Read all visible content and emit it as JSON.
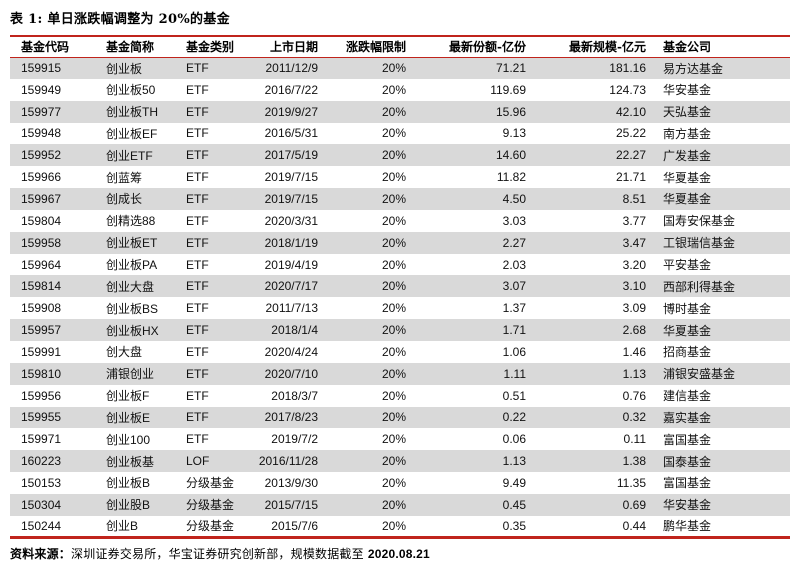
{
  "title": "表 1: 单日涨跌幅调整为 20%的基金",
  "colors": {
    "rule_red": "#c0241c",
    "stripe_gray": "#d9d9d9",
    "text_black": "#1a1a1a"
  },
  "table": {
    "columns": [
      {
        "key": "code",
        "label": "基金代码",
        "align": "left"
      },
      {
        "key": "name",
        "label": "基金简称",
        "align": "left"
      },
      {
        "key": "type",
        "label": "基金类别",
        "align": "left"
      },
      {
        "key": "date",
        "label": "上市日期",
        "align": "right"
      },
      {
        "key": "limit",
        "label": "涨跌幅限制",
        "align": "right"
      },
      {
        "key": "shares",
        "label": "最新份额-亿份",
        "align": "right"
      },
      {
        "key": "scale",
        "label": "最新规模-亿元",
        "align": "right"
      },
      {
        "key": "company",
        "label": "基金公司",
        "align": "left"
      }
    ],
    "rows": [
      [
        "159915",
        "创业板",
        "ETF",
        "2011/12/9",
        "20%",
        "71.21",
        "181.16",
        "易方达基金"
      ],
      [
        "159949",
        "创业板50",
        "ETF",
        "2016/7/22",
        "20%",
        "119.69",
        "124.73",
        "华安基金"
      ],
      [
        "159977",
        "创业板TH",
        "ETF",
        "2019/9/27",
        "20%",
        "15.96",
        "42.10",
        "天弘基金"
      ],
      [
        "159948",
        "创业板EF",
        "ETF",
        "2016/5/31",
        "20%",
        "9.13",
        "25.22",
        "南方基金"
      ],
      [
        "159952",
        "创业ETF",
        "ETF",
        "2017/5/19",
        "20%",
        "14.60",
        "22.27",
        "广发基金"
      ],
      [
        "159966",
        "创蓝筹",
        "ETF",
        "2019/7/15",
        "20%",
        "11.82",
        "21.71",
        "华夏基金"
      ],
      [
        "159967",
        "创成长",
        "ETF",
        "2019/7/15",
        "20%",
        "4.50",
        "8.51",
        "华夏基金"
      ],
      [
        "159804",
        "创精选88",
        "ETF",
        "2020/3/31",
        "20%",
        "3.03",
        "3.77",
        "国寿安保基金"
      ],
      [
        "159958",
        "创业板ET",
        "ETF",
        "2018/1/19",
        "20%",
        "2.27",
        "3.47",
        "工银瑞信基金"
      ],
      [
        "159964",
        "创业板PA",
        "ETF",
        "2019/4/19",
        "20%",
        "2.03",
        "3.20",
        "平安基金"
      ],
      [
        "159814",
        "创业大盘",
        "ETF",
        "2020/7/17",
        "20%",
        "3.07",
        "3.10",
        "西部利得基金"
      ],
      [
        "159908",
        "创业板BS",
        "ETF",
        "2011/7/13",
        "20%",
        "1.37",
        "3.09",
        "博时基金"
      ],
      [
        "159957",
        "创业板HX",
        "ETF",
        "2018/1/4",
        "20%",
        "1.71",
        "2.68",
        "华夏基金"
      ],
      [
        "159991",
        "创大盘",
        "ETF",
        "2020/4/24",
        "20%",
        "1.06",
        "1.46",
        "招商基金"
      ],
      [
        "159810",
        "浦银创业",
        "ETF",
        "2020/7/10",
        "20%",
        "1.11",
        "1.13",
        "浦银安盛基金"
      ],
      [
        "159956",
        "创业板F",
        "ETF",
        "2018/3/7",
        "20%",
        "0.51",
        "0.76",
        "建信基金"
      ],
      [
        "159955",
        "创业板E",
        "ETF",
        "2017/8/23",
        "20%",
        "0.22",
        "0.32",
        "嘉实基金"
      ],
      [
        "159971",
        "创业100",
        "ETF",
        "2019/7/2",
        "20%",
        "0.06",
        "0.11",
        "富国基金"
      ],
      [
        "160223",
        "创业板基",
        "LOF",
        "2016/11/28",
        "20%",
        "1.13",
        "1.38",
        "国泰基金"
      ],
      [
        "150153",
        "创业板B",
        "分级基金",
        "2013/9/30",
        "20%",
        "9.49",
        "11.35",
        "富国基金"
      ],
      [
        "150304",
        "创业股B",
        "分级基金",
        "2015/7/15",
        "20%",
        "0.45",
        "0.69",
        "华安基金"
      ],
      [
        "150244",
        "创业B",
        "分级基金",
        "2015/7/6",
        "20%",
        "0.35",
        "0.44",
        "鹏华基金"
      ]
    ]
  },
  "footer": {
    "label": "资料来源：",
    "text": "深圳证券交易所，华宝证券研究创新部，规模数据截至 ",
    "date": "2020.08.21"
  }
}
